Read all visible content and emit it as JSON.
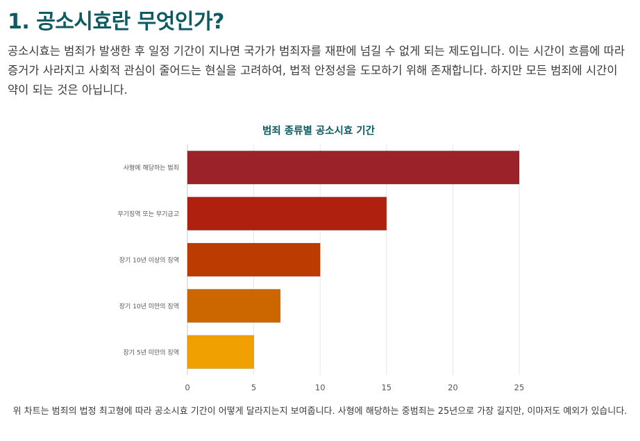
{
  "section": {
    "heading": "1. 공소시효란 무엇인가?",
    "intro": "공소시효는 범죄가 발생한 후 일정 기간이 지나면 국가가 범죄자를 재판에 넘길 수 없게 되는 제도입니다. 이는 시간이 흐름에 따라 증거가 사라지고 사회적 관심이 줄어드는 현실을 고려하여, 법적 안정성을 도모하기 위해 존재합니다. 하지만 모든 범죄에 시간이 약이 되는 것은 아닙니다.",
    "caption": "위 차트는 범죄의 법정 최고형에 따라 공소시효 기간이 어떻게 달라지는지 보여줍니다. 사형에 해당하는 중범죄는 25년으로 가장 길지만, 이마저도 예외가 있습니다."
  },
  "chart_data": {
    "type": "bar",
    "orientation": "horizontal",
    "title": "범죄 종류별 공소시효 기간",
    "xlabel": "",
    "ylabel": "",
    "categories": [
      "사형에 해당하는 범죄",
      "무기징역 또는 무기금고",
      "장기 10년 이상의 징역",
      "장기 10년 미만의 징역",
      "장기 5년 미만의 징역"
    ],
    "values": [
      25,
      15,
      10,
      7,
      5
    ],
    "xlim": [
      0,
      25
    ],
    "xticks": [
      0,
      5,
      10,
      15,
      20,
      25
    ],
    "grid": "vertical",
    "legend": "none",
    "colors": [
      "#9b2228",
      "#b0200f",
      "#bb3b00",
      "#cc6700",
      "#f0a000"
    ]
  }
}
